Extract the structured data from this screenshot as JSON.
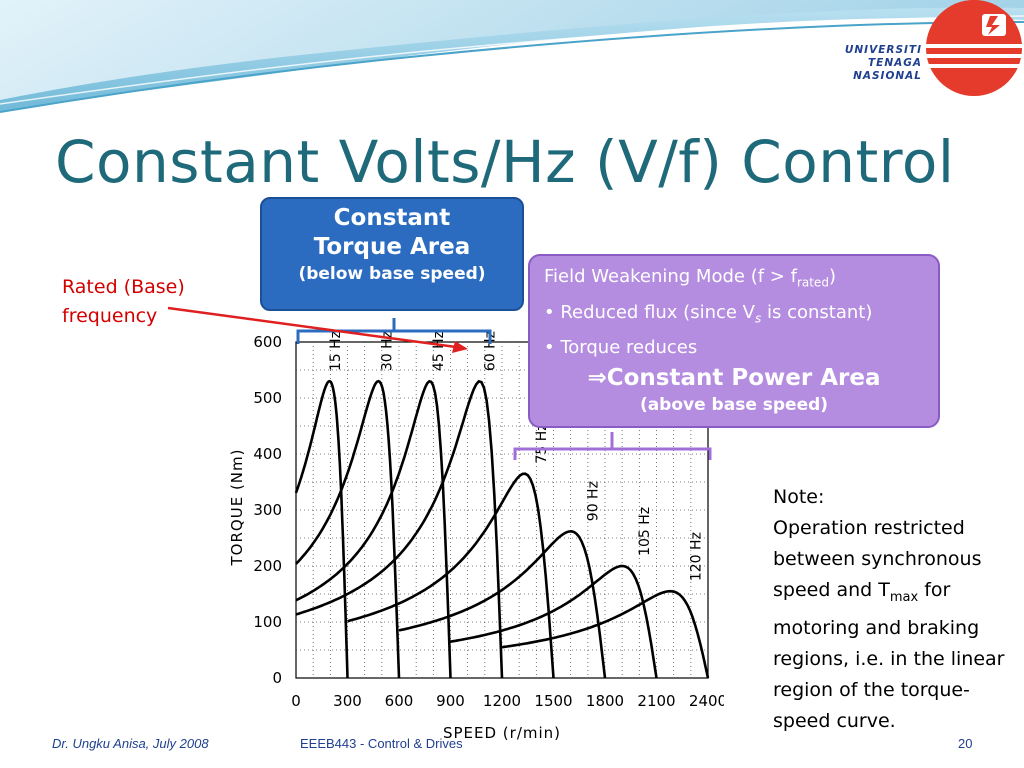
{
  "slide": {
    "title": "Constant Volts/Hz (V/f) Control",
    "logo": {
      "line1": "UNIVERSITI",
      "line2": "TENAGA",
      "line3": "NASIONAL"
    },
    "constant_torque_box": {
      "line1": "Constant",
      "line2": "Torque Area",
      "line3": "(below base speed)"
    },
    "field_weakening_box": {
      "heading": "Field Weakening Mode (f > f",
      "heading_sub": "rated",
      "heading_end": ")",
      "bullet1": "• Reduced flux (since V",
      "bullet1_sub": "s",
      "bullet1_end": " is constant)",
      "bullet2": "• Torque reduces",
      "arrow": "⇒",
      "constant_power": "Constant Power Area",
      "above": "(above base speed)"
    },
    "rated_label": {
      "line1": "Rated (Base)",
      "line2": "frequency"
    },
    "note": {
      "heading": "Note:",
      "text1": "Operation restricted between synchronous speed and T",
      "text_sub": "max",
      "text2": " for motoring and braking regions, i.e. in the linear region of the torque-speed curve."
    },
    "footer": {
      "author": "Dr. Ungku Anisa, July 2008",
      "course": "EEEB443 - Control & Drives",
      "page": "20"
    },
    "colors": {
      "title": "#1f6a7a",
      "ct_box": "#2b6cc0",
      "fw_box": "#b58de0",
      "rated": "#d40000",
      "logo_red": "#e53b2c"
    }
  },
  "chart_data": {
    "type": "line",
    "xlabel": "SPEED (r/min)",
    "ylabel": "TORQUE (Nm)",
    "xlim": [
      0,
      2400
    ],
    "ylim": [
      0,
      600
    ],
    "xticks": [
      "0",
      "300",
      "600",
      "900",
      "1200",
      "1500",
      "1800",
      "2100",
      "2400"
    ],
    "yticks": [
      "0",
      "100",
      "200",
      "300",
      "400",
      "500",
      "600"
    ],
    "series": [
      {
        "name": "15 Hz",
        "sync": 300,
        "peak_speed": 195,
        "peak_torque": 530
      },
      {
        "name": "30 Hz",
        "sync": 600,
        "peak_speed": 480,
        "peak_torque": 530
      },
      {
        "name": "45 Hz",
        "sync": 900,
        "peak_speed": 780,
        "peak_torque": 530
      },
      {
        "name": "60 Hz",
        "sync": 1200,
        "peak_speed": 1070,
        "peak_torque": 530
      },
      {
        "name": "75 Hz",
        "sync": 1500,
        "peak_speed": 1330,
        "peak_torque": 365
      },
      {
        "name": "90 Hz",
        "sync": 1800,
        "peak_speed": 1600,
        "peak_torque": 262
      },
      {
        "name": "105 Hz",
        "sync": 2100,
        "peak_speed": 1900,
        "peak_torque": 200
      },
      {
        "name": "120 Hz",
        "sync": 2400,
        "peak_speed": 2180,
        "peak_torque": 155
      }
    ]
  }
}
